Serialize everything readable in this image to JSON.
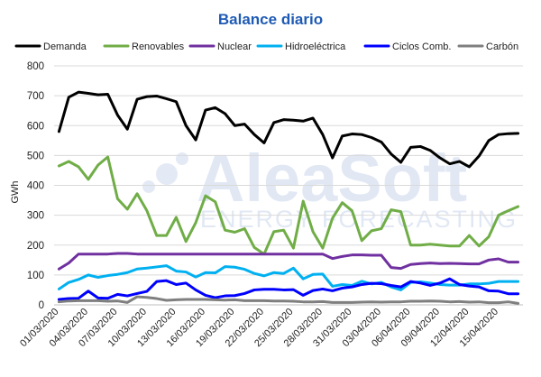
{
  "chart_data": {
    "type": "line",
    "title": "Balance diario",
    "ylabel": "GWh",
    "xlabel": "",
    "ylim": [
      0,
      800
    ],
    "yticks": [
      0,
      100,
      200,
      300,
      400,
      500,
      600,
      700,
      800
    ],
    "grid": "horizontal",
    "legend_position": "top",
    "watermark": {
      "main": "AleaSoft",
      "sub": "ENERGY FORECASTING"
    },
    "x": [
      "01/03/2020",
      "02/03/2020",
      "03/03/2020",
      "04/03/2020",
      "05/03/2020",
      "06/03/2020",
      "07/03/2020",
      "08/03/2020",
      "09/03/2020",
      "10/03/2020",
      "11/03/2020",
      "12/03/2020",
      "13/03/2020",
      "14/03/2020",
      "15/03/2020",
      "16/03/2020",
      "17/03/2020",
      "18/03/2020",
      "19/03/2020",
      "20/03/2020",
      "21/03/2020",
      "22/03/2020",
      "23/03/2020",
      "24/03/2020",
      "25/03/2020",
      "26/03/2020",
      "27/03/2020",
      "28/03/2020",
      "29/03/2020",
      "30/03/2020",
      "31/03/2020",
      "01/04/2020",
      "02/04/2020",
      "03/04/2020",
      "04/04/2020",
      "05/04/2020",
      "06/04/2020",
      "07/04/2020",
      "08/04/2020",
      "09/04/2020",
      "10/04/2020",
      "11/04/2020",
      "12/04/2020",
      "13/04/2020",
      "14/04/2020",
      "15/04/2020",
      "16/04/2020",
      "17/04/2020"
    ],
    "xtick_labels": [
      "01/03/2020",
      "04/03/2020",
      "07/03/2020",
      "10/03/2020",
      "13/03/2020",
      "16/03/2020",
      "19/03/2020",
      "22/03/2020",
      "25/03/2020",
      "28/03/2020",
      "31/03/2020",
      "03/04/2020",
      "06/04/2020",
      "09/04/2020",
      "12/04/2020",
      "15/04/2020"
    ],
    "series": [
      {
        "name": "Demanda",
        "color": "#000000",
        "values": [
          580,
          695,
          712,
          708,
          703,
          705,
          635,
          588,
          688,
          697,
          699,
          690,
          680,
          600,
          552,
          652,
          660,
          640,
          600,
          605,
          570,
          542,
          610,
          620,
          618,
          615,
          625,
          570,
          492,
          565,
          572,
          570,
          560,
          545,
          505,
          477,
          527,
          530,
          517,
          492,
          472,
          480,
          462,
          498,
          550,
          570,
          573,
          574
        ]
      },
      {
        "name": "Renovables",
        "color": "#70ad47",
        "values": [
          465,
          480,
          462,
          420,
          468,
          495,
          355,
          320,
          372,
          315,
          232,
          232,
          293,
          212,
          275,
          365,
          345,
          250,
          243,
          255,
          192,
          170,
          245,
          250,
          190,
          347,
          245,
          190,
          290,
          342,
          315,
          215,
          248,
          255,
          318,
          312,
          200,
          200,
          203,
          200,
          197,
          197,
          232,
          197,
          228,
          300,
          315,
          329
        ]
      },
      {
        "name": "Nuclear",
        "color": "#7030a0",
        "values": [
          120,
          140,
          170,
          170,
          170,
          170,
          172,
          172,
          170,
          170,
          170,
          170,
          170,
          170,
          170,
          170,
          170,
          170,
          170,
          170,
          170,
          170,
          170,
          170,
          170,
          170,
          170,
          170,
          155,
          162,
          167,
          167,
          166,
          166,
          125,
          122,
          135,
          138,
          140,
          138,
          139,
          138,
          137,
          137,
          150,
          154,
          143,
          143
        ]
      },
      {
        "name": "Hidroeléctrica",
        "color": "#00b0f0",
        "values": [
          53,
          75,
          85,
          100,
          92,
          98,
          102,
          108,
          120,
          123,
          127,
          131,
          113,
          110,
          93,
          108,
          107,
          128,
          126,
          119,
          105,
          97,
          108,
          105,
          123,
          87,
          102,
          103,
          62,
          68,
          65,
          79,
          70,
          75,
          60,
          50,
          75,
          77,
          73,
          68,
          66,
          66,
          70,
          70,
          72,
          78,
          78,
          78
        ]
      },
      {
        "name": "Ciclos Comb.",
        "color": "#0000ff",
        "values": [
          18,
          21,
          22,
          46,
          23,
          22,
          35,
          30,
          38,
          45,
          78,
          81,
          68,
          73,
          50,
          32,
          24,
          30,
          31,
          38,
          50,
          52,
          52,
          50,
          51,
          32,
          48,
          53,
          47,
          56,
          60,
          68,
          72,
          71,
          65,
          60,
          78,
          73,
          65,
          73,
          87,
          68,
          63,
          60,
          47,
          46,
          37,
          37
        ]
      },
      {
        "name": "Carbón",
        "color": "#7f7f7f",
        "values": [
          10,
          13,
          14,
          14,
          14,
          12,
          13,
          8,
          27,
          25,
          21,
          15,
          17,
          18,
          18,
          18,
          17,
          16,
          17,
          14,
          14,
          14,
          13,
          13,
          12,
          10,
          10,
          11,
          8,
          8,
          8,
          9,
          10,
          9,
          10,
          10,
          12,
          12,
          13,
          12,
          10,
          11,
          9,
          10,
          7,
          7,
          10,
          5
        ]
      }
    ]
  }
}
